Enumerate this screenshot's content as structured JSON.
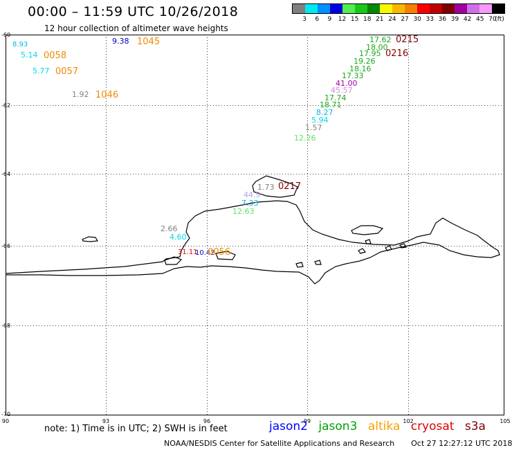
{
  "header": {
    "title": "00:00 – 11:59 UTC 10/26/2018",
    "subtitle": "12 hour collection of altimeter wave heights"
  },
  "color_scale": {
    "colors": [
      "#808080",
      "#00e8f0",
      "#0090ff",
      "#0000e0",
      "#50ee50",
      "#18c818",
      "#008800",
      "#f8f800",
      "#f8b800",
      "#f88000",
      "#f80000",
      "#c00000",
      "#800000",
      "#a000a0",
      "#d070e8",
      "#f898f8",
      "#000000"
    ],
    "labels": [
      "3",
      "6",
      "9",
      "12",
      "15",
      "18",
      "21",
      "24",
      "27",
      "30",
      "33",
      "36",
      "39",
      "42",
      "45",
      "70"
    ],
    "unit": "(ft)"
  },
  "axes": {
    "lat_labels": [
      "-60",
      "-62",
      "-64",
      "-66",
      "-68",
      "-70"
    ],
    "lon_labels": [
      "90",
      "93",
      "96",
      "99",
      "102",
      "105"
    ]
  },
  "observations": [
    {
      "text": "8.93",
      "color": "#00b8e0"
    },
    {
      "text": "5.14",
      "color": "#00d8e8"
    },
    {
      "text": "0058",
      "color": "#f08800"
    },
    {
      "text": "5.77",
      "color": "#00d8e8"
    },
    {
      "text": "0057",
      "color": "#f08800"
    },
    {
      "text": "1.92",
      "color": "#808080"
    },
    {
      "text": "1046",
      "color": "#f08800"
    },
    {
      "text": "9.38",
      "color": "#0000c0"
    },
    {
      "text": "1045",
      "color": "#f08800"
    },
    {
      "text": "17.62",
      "color": "#18a818"
    },
    {
      "text": "0215",
      "color": "#800000"
    },
    {
      "text": "18.00",
      "color": "#18a818"
    },
    {
      "text": "17.95",
      "color": "#18a818"
    },
    {
      "text": "0216",
      "color": "#800000"
    },
    {
      "text": "19.26",
      "color": "#18a818"
    },
    {
      "text": "18.16",
      "color": "#18a818"
    },
    {
      "text": "17.33",
      "color": "#18a818"
    },
    {
      "text": "41.00",
      "color": "#a000a0"
    },
    {
      "text": "45.57",
      "color": "#e080e8"
    },
    {
      "text": "18.71",
      "color": "#18a818"
    },
    {
      "text": "17.74",
      "color": "#18a818"
    },
    {
      "text": "8.27",
      "color": "#00b8e0"
    },
    {
      "text": "5.94",
      "color": "#00d8e8"
    },
    {
      "text": "1.57",
      "color": "#808080"
    },
    {
      "text": "12.26",
      "color": "#60e060"
    },
    {
      "text": "1.73",
      "color": "#808080"
    },
    {
      "text": "0217",
      "color": "#800000"
    },
    {
      "text": "44.9",
      "color": "#b0a8e8"
    },
    {
      "text": "7.33",
      "color": "#00b8e0"
    },
    {
      "text": "12.63",
      "color": "#60e060"
    },
    {
      "text": "2.66",
      "color": "#808080"
    },
    {
      "text": "4.60",
      "color": "#00d8e8"
    },
    {
      "text": "31.11",
      "color": "#e00000"
    },
    {
      "text": "10.42",
      "color": "#0000c0"
    },
    {
      "text": "0056",
      "color": "#f08800"
    }
  ],
  "footer": {
    "note": "note: 1) Time is in UTC; 2) SWH is in feet",
    "legend": [
      {
        "name": "jason2",
        "color": "#0000ff"
      },
      {
        "name": "jason3",
        "color": "#00a000"
      },
      {
        "name": "altika",
        "color": "#f8a000"
      },
      {
        "name": "cryosat",
        "color": "#e00000"
      },
      {
        "name": "s3a",
        "color": "#800000"
      }
    ],
    "credit": "NOAA/NESDIS Center for Satellite Applications and Research",
    "timestamp": "Oct 27 12:27:12 UTC 2018"
  }
}
